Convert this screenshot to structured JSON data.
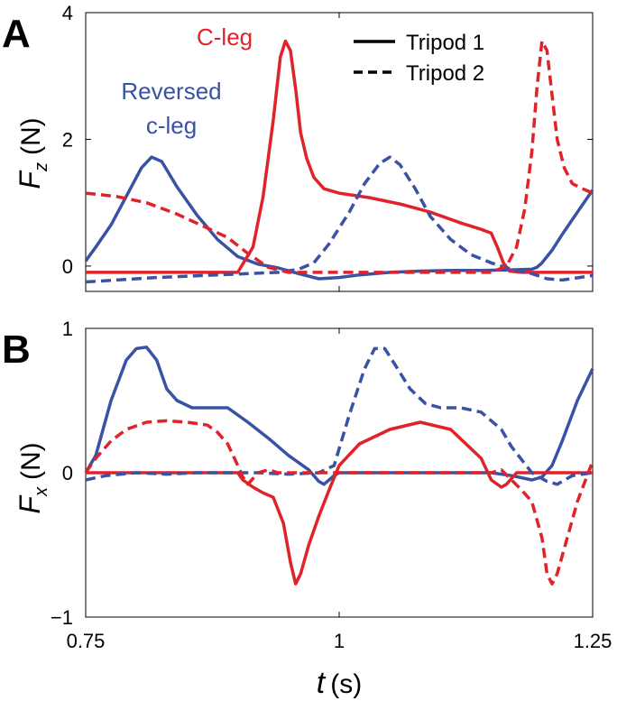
{
  "colors": {
    "red": "#e0232a",
    "blue": "#3a52a3",
    "black": "#000000"
  },
  "chart_data": [
    {
      "panel_label": "A",
      "type": "line",
      "ylabel_var": "F",
      "ylabel_sub": "z",
      "ylabel_unit": "(N)",
      "xlim": [
        0.75,
        1.25
      ],
      "ylim": [
        -0.4,
        4
      ],
      "yticks": [
        {
          "value": 0,
          "label": "0"
        },
        {
          "value": 2,
          "label": "2"
        },
        {
          "value": 4,
          "label": "4"
        }
      ],
      "xticks": [
        0.75,
        1,
        1.25
      ],
      "annotations": {
        "cleg": "C-leg",
        "reversed_line1": "Reversed",
        "reversed_line2": "c-leg"
      },
      "legend": {
        "solid": "Tripod 1",
        "dashed": "Tripod 2"
      },
      "series": [
        {
          "name": "Tripod 1 reversed c-leg (blue solid)",
          "color": "blue",
          "dash": false,
          "x": [
            0.75,
            0.76,
            0.775,
            0.79,
            0.805,
            0.815,
            0.825,
            0.84,
            0.86,
            0.88,
            0.9,
            0.92,
            0.94,
            0.96,
            0.98,
            1.0,
            1.02,
            1.05,
            1.08,
            1.11,
            1.14,
            1.17,
            1.19,
            1.195,
            1.2,
            1.21,
            1.22,
            1.235,
            1.25
          ],
          "y": [
            0.08,
            0.3,
            0.65,
            1.1,
            1.55,
            1.72,
            1.65,
            1.25,
            0.8,
            0.42,
            0.15,
            0.03,
            -0.03,
            -0.12,
            -0.2,
            -0.18,
            -0.14,
            -0.1,
            -0.08,
            -0.07,
            -0.07,
            -0.06,
            -0.05,
            -0.02,
            0.05,
            0.25,
            0.5,
            0.85,
            1.2
          ]
        },
        {
          "name": "Tripod 1 c-leg (red solid)",
          "color": "red",
          "dash": false,
          "x": [
            0.75,
            0.85,
            0.9,
            0.915,
            0.925,
            0.935,
            0.942,
            0.947,
            0.952,
            0.957,
            0.962,
            0.968,
            0.975,
            0.985,
            1.0,
            1.03,
            1.06,
            1.09,
            1.12,
            1.14,
            1.15,
            1.156,
            1.162,
            1.168,
            1.18,
            1.25
          ],
          "y": [
            -0.1,
            -0.1,
            -0.1,
            0.3,
            1.1,
            2.3,
            3.3,
            3.55,
            3.4,
            2.8,
            2.1,
            1.7,
            1.4,
            1.22,
            1.15,
            1.08,
            0.98,
            0.85,
            0.68,
            0.58,
            0.52,
            0.3,
            0.05,
            -0.08,
            -0.1,
            -0.1
          ]
        },
        {
          "name": "Tripod 2 reversed c-leg (blue dashed)",
          "color": "blue",
          "dash": true,
          "x": [
            0.75,
            0.78,
            0.8,
            0.82,
            0.85,
            0.88,
            0.91,
            0.94,
            0.96,
            0.975,
            0.99,
            1.01,
            1.025,
            1.04,
            1.05,
            1.06,
            1.075,
            1.09,
            1.11,
            1.13,
            1.15,
            1.17,
            1.19,
            1.205,
            1.22,
            1.25
          ],
          "y": [
            -0.25,
            -0.22,
            -0.2,
            -0.18,
            -0.16,
            -0.14,
            -0.12,
            -0.1,
            -0.05,
            0.05,
            0.35,
            0.85,
            1.3,
            1.62,
            1.72,
            1.6,
            1.22,
            0.78,
            0.42,
            0.18,
            0.05,
            -0.05,
            -0.12,
            -0.2,
            -0.22,
            -0.15
          ]
        },
        {
          "name": "Tripod 2 c-leg (red dashed)",
          "color": "red",
          "dash": true,
          "x": [
            0.75,
            0.78,
            0.81,
            0.84,
            0.87,
            0.89,
            0.91,
            0.93,
            0.95,
            0.97,
            1.0,
            1.05,
            1.1,
            1.15,
            1.165,
            1.175,
            1.183,
            1.19,
            1.195,
            1.2,
            1.205,
            1.21,
            1.215,
            1.222,
            1.23,
            1.24,
            1.25
          ],
          "y": [
            1.15,
            1.1,
            1.0,
            0.82,
            0.6,
            0.45,
            0.2,
            -0.02,
            -0.1,
            -0.1,
            -0.1,
            -0.1,
            -0.1,
            -0.1,
            0.0,
            0.3,
            0.9,
            1.8,
            2.8,
            3.55,
            3.4,
            2.7,
            2.0,
            1.55,
            1.3,
            1.22,
            1.15
          ]
        }
      ]
    },
    {
      "panel_label": "B",
      "type": "line",
      "ylabel_var": "F",
      "ylabel_sub": "x",
      "ylabel_unit": "(N)",
      "xlim": [
        0.75,
        1.25
      ],
      "ylim": [
        -1,
        1
      ],
      "yticks": [
        {
          "value": -1,
          "label": "−1"
        },
        {
          "value": 0,
          "label": "0"
        },
        {
          "value": 1,
          "label": "1"
        }
      ],
      "xticks": [
        0.75,
        1,
        1.25
      ],
      "xticklabels": [
        "0.75",
        "1",
        "1.25"
      ],
      "xlabel_var": "t",
      "xlabel_unit": "(s)",
      "series": [
        {
          "name": "Tripod 1 reversed c-leg (blue solid)",
          "color": "blue",
          "dash": false,
          "x": [
            0.75,
            0.76,
            0.775,
            0.79,
            0.8,
            0.81,
            0.82,
            0.83,
            0.84,
            0.855,
            0.87,
            0.89,
            0.91,
            0.93,
            0.95,
            0.97,
            0.98,
            0.985,
            0.99,
            0.995,
            1.0,
            1.05,
            1.1,
            1.15,
            1.17,
            1.19,
            1.2,
            1.21,
            1.22,
            1.235,
            1.25
          ],
          "y": [
            0.0,
            0.12,
            0.5,
            0.78,
            0.86,
            0.87,
            0.78,
            0.58,
            0.5,
            0.45,
            0.45,
            0.45,
            0.35,
            0.24,
            0.12,
            0.02,
            -0.06,
            -0.08,
            -0.05,
            -0.02,
            0.0,
            0.0,
            0.0,
            0.0,
            -0.02,
            -0.05,
            -0.03,
            0.05,
            0.22,
            0.5,
            0.72
          ]
        },
        {
          "name": "Tripod 1 c-leg (red solid)",
          "color": "red",
          "dash": false,
          "x": [
            0.75,
            0.9,
            0.905,
            0.915,
            0.925,
            0.935,
            0.945,
            0.952,
            0.957,
            0.962,
            0.97,
            0.98,
            0.99,
            1.0,
            1.02,
            1.05,
            1.08,
            1.11,
            1.14,
            1.15,
            1.16,
            1.165,
            1.175,
            1.19,
            1.25
          ],
          "y": [
            0.0,
            0.0,
            -0.05,
            -0.1,
            -0.14,
            -0.17,
            -0.35,
            -0.62,
            -0.77,
            -0.7,
            -0.5,
            -0.3,
            -0.12,
            0.05,
            0.2,
            0.3,
            0.35,
            0.3,
            0.1,
            -0.05,
            -0.1,
            -0.08,
            0.0,
            0.0,
            0.0
          ]
        },
        {
          "name": "Tripod 2 reversed c-leg (blue dashed)",
          "color": "blue",
          "dash": true,
          "x": [
            0.75,
            0.77,
            0.8,
            0.83,
            0.86,
            0.89,
            0.92,
            0.95,
            0.98,
            0.995,
            1.01,
            1.025,
            1.035,
            1.045,
            1.055,
            1.07,
            1.085,
            1.1,
            1.12,
            1.14,
            1.16,
            1.17,
            1.19,
            1.205,
            1.215,
            1.23,
            1.25
          ],
          "y": [
            -0.05,
            -0.02,
            0.0,
            -0.01,
            0.0,
            0.0,
            0.0,
            -0.01,
            0.0,
            0.05,
            0.4,
            0.72,
            0.86,
            0.86,
            0.75,
            0.58,
            0.48,
            0.45,
            0.45,
            0.42,
            0.3,
            0.18,
            0.0,
            -0.06,
            -0.08,
            -0.02,
            0.0
          ]
        },
        {
          "name": "Tripod 2 c-leg (red dashed)",
          "color": "red",
          "dash": true,
          "x": [
            0.75,
            0.76,
            0.775,
            0.79,
            0.81,
            0.83,
            0.85,
            0.87,
            0.88,
            0.89,
            0.9,
            0.905,
            0.91,
            0.92,
            0.93,
            0.94,
            0.95,
            1.0,
            1.05,
            1.1,
            1.15,
            1.16,
            1.17,
            1.18,
            1.19,
            1.2,
            1.205,
            1.21,
            1.215,
            1.225,
            1.235,
            1.25
          ],
          "y": [
            0.0,
            0.1,
            0.22,
            0.3,
            0.35,
            0.36,
            0.35,
            0.33,
            0.28,
            0.2,
            0.05,
            -0.03,
            -0.08,
            0.0,
            0.02,
            0.0,
            0.0,
            0.0,
            0.0,
            0.0,
            0.0,
            0.02,
            -0.05,
            -0.12,
            -0.2,
            -0.45,
            -0.7,
            -0.77,
            -0.7,
            -0.45,
            -0.2,
            0.08
          ]
        }
      ]
    }
  ]
}
